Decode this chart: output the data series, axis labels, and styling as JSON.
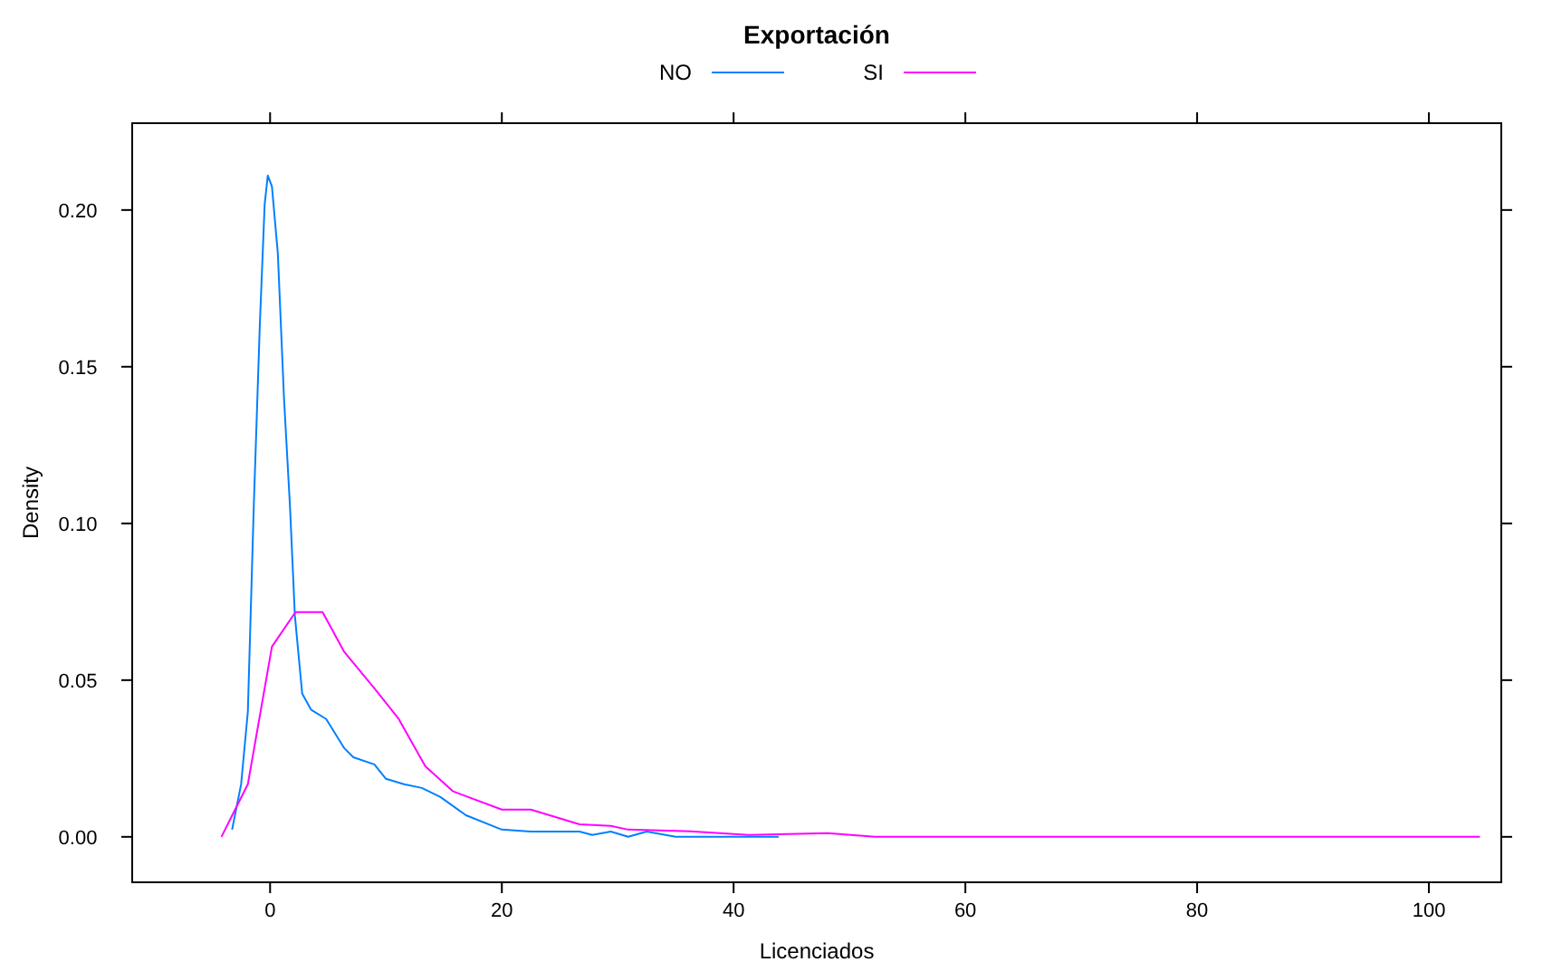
{
  "chart_data": {
    "type": "line",
    "legend_title": "Exportación",
    "xlabel": "Licenciados",
    "ylabel": "Density",
    "legend": "top",
    "line_style": "solid",
    "grid": false,
    "xlim": [
      -11.9,
      106.25
    ],
    "xticks": [
      0,
      20,
      40,
      60,
      80,
      100
    ],
    "ylim": [
      -0.0145,
      0.2277
    ],
    "yticks": [
      {
        "value": 0,
        "label": "0.00"
      },
      {
        "value": 0.05,
        "label": "0.05"
      },
      {
        "value": 0.1,
        "label": "0.10"
      },
      {
        "value": 0.15,
        "label": "0.15"
      },
      {
        "value": 0.2,
        "label": "0.20"
      }
    ],
    "series": [
      {
        "name": "NO",
        "color": "#0080ff",
        "x": [
          -3.28,
          -2.5,
          -1.92,
          -1.41,
          -0.89,
          -0.47,
          -0.2,
          0.16,
          0.67,
          1.2,
          1.72,
          2.14,
          2.77,
          3.55,
          4.84,
          6.4,
          7.19,
          9.0,
          10.0,
          11.56,
          13.1,
          14.7,
          16.9,
          20,
          22.5,
          26.7,
          27.8,
          29.4,
          30.9,
          32.5,
          35,
          39.2,
          43.9
        ],
        "values": [
          0.0023,
          0.0168,
          0.0399,
          0.1052,
          0.163,
          0.2017,
          0.211,
          0.2075,
          0.186,
          0.14,
          0.1052,
          0.0705,
          0.0457,
          0.0405,
          0.0376,
          0.0283,
          0.0254,
          0.0231,
          0.0185,
          0.0168,
          0.0156,
          0.0127,
          0.0069,
          0.0023,
          0.0017,
          0.0017,
          0.0006,
          0.0017,
          0,
          0.0017,
          0,
          0,
          0
        ]
      },
      {
        "name": "SI",
        "color": "#ff00ff",
        "x": [
          -4.2,
          -1.92,
          0.16,
          2.19,
          4.53,
          6.4,
          9.0,
          11.1,
          13.4,
          15.8,
          20,
          22.5,
          26.7,
          29.4,
          30.9,
          36.6,
          41.3,
          48.1,
          52.2,
          104.4
        ],
        "values": [
          0,
          0.0168,
          0.0607,
          0.0717,
          0.0717,
          0.059,
          0.0474,
          0.0376,
          0.0225,
          0.0145,
          0.0087,
          0.0087,
          0.004,
          0.0035,
          0.0023,
          0.0017,
          0.0006,
          0.0012,
          0,
          0
        ]
      }
    ]
  }
}
